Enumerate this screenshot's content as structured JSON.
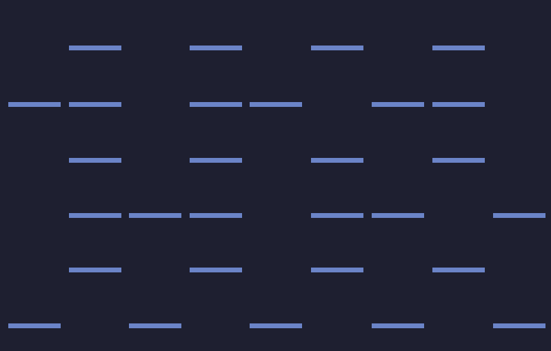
{
  "colors": {
    "background": "#1e1f30",
    "bar": "#6b84c8"
  },
  "grid": [
    [
      0,
      1,
      0,
      1,
      0,
      1,
      0,
      1,
      0
    ],
    [
      1,
      1,
      0,
      1,
      1,
      0,
      1,
      1,
      0
    ],
    [
      0,
      1,
      0,
      1,
      0,
      1,
      0,
      1,
      0
    ],
    [
      0,
      1,
      1,
      1,
      0,
      1,
      1,
      0,
      1
    ],
    [
      0,
      1,
      0,
      1,
      0,
      1,
      0,
      1,
      0
    ],
    [
      1,
      0,
      1,
      0,
      1,
      0,
      1,
      0,
      1
    ]
  ]
}
